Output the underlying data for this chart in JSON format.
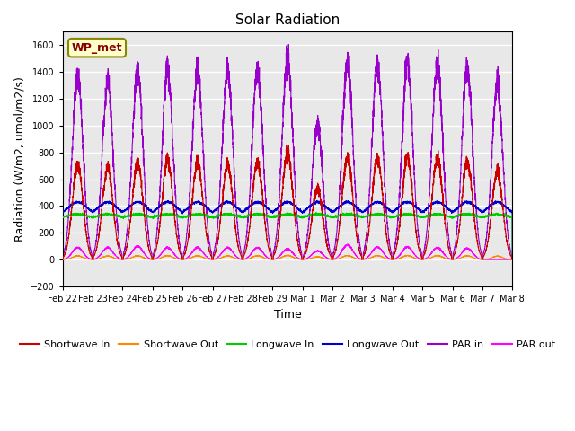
{
  "title": "Solar Radiation",
  "ylabel": "Radiation (W/m2, umol/m2/s)",
  "xlabel": "Time",
  "ylim": [
    -200,
    1700
  ],
  "yticks": [
    -200,
    0,
    200,
    400,
    600,
    800,
    1000,
    1200,
    1400,
    1600
  ],
  "background_color": "#e8e8e8",
  "grid_color": "white",
  "annotation_text": "WP_met",
  "annotation_bg": "#ffffcc",
  "annotation_border": "#888800",
  "n_days": 15,
  "x_labels": [
    "Feb 22",
    "Feb 23",
    "Feb 24",
    "Feb 25",
    "Feb 26",
    "Feb 27",
    "Feb 28",
    "Feb 29",
    "Mar 1",
    "Mar 2",
    "Mar 3",
    "Mar 4",
    "Mar 5",
    "Mar 6",
    "Mar 7",
    "Mar 8"
  ],
  "shortwave_in_color": "#cc0000",
  "shortwave_out_color": "#ff8800",
  "longwave_in_color": "#00cc00",
  "longwave_out_color": "#0000cc",
  "par_in_color": "#9900cc",
  "par_out_color": "#ff00ff",
  "shortwave_in_peaks": [
    700,
    680,
    720,
    740,
    720,
    710,
    730,
    800,
    530,
    760,
    760,
    760,
    760,
    730,
    650
  ],
  "par_in_peaks": [
    1360,
    1320,
    1400,
    1410,
    1400,
    1410,
    1420,
    1500,
    1000,
    1470,
    1460,
    1460,
    1460,
    1430,
    1300
  ],
  "par_out_peaks": [
    90,
    90,
    100,
    90,
    90,
    90,
    90,
    80,
    65,
    110,
    95,
    95,
    90,
    85,
    0
  ],
  "longwave_in_base": 310,
  "longwave_in_day_bump": 30,
  "longwave_out_base": 330,
  "longwave_out_day_bump": 100,
  "legend_entries": [
    "Shortwave In",
    "Shortwave Out",
    "Longwave In",
    "Longwave Out",
    "PAR in",
    "PAR out"
  ]
}
